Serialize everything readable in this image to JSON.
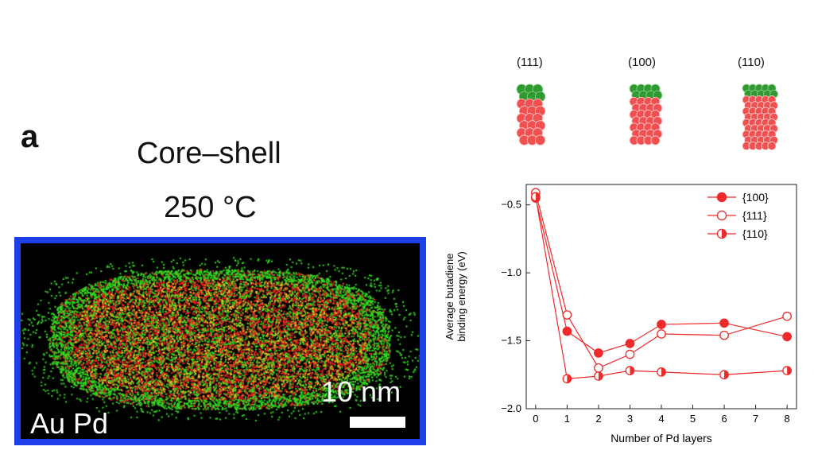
{
  "panel": {
    "letter": "a",
    "title_line1": "Core–shell",
    "title_line2": "250 °C"
  },
  "micrograph": {
    "scale_label": "10 nm",
    "element_label": "Au Pd",
    "frame_color": "#1d3ee8",
    "pd_color": "#33dd22",
    "au_color": "#ee2222"
  },
  "facets": [
    {
      "label": "(111)"
    },
    {
      "label": "(100)"
    },
    {
      "label": "(110)"
    }
  ],
  "chart_data": {
    "type": "line",
    "xlabel": "Number of Pd layers",
    "ylabel": "Average butadiene\nbinding energy (eV)",
    "xlim": [
      -0.3,
      8.3
    ],
    "ylim": [
      -2.0,
      -0.35
    ],
    "xticks": [
      0,
      1,
      2,
      3,
      4,
      5,
      6,
      7,
      8
    ],
    "yticks": [
      -2.0,
      -1.5,
      -1.0,
      -0.5
    ],
    "ytick_labels": [
      "−2.0",
      "−1.5",
      "−1.0",
      "−0.5"
    ],
    "legend_position": "top-right",
    "color": "#ee2a2a",
    "series": [
      {
        "name": "{100}",
        "marker": "filled",
        "x": [
          0,
          1,
          2,
          3,
          4,
          6,
          8
        ],
        "y": [
          -0.45,
          -1.43,
          -1.59,
          -1.52,
          -1.38,
          -1.37,
          -1.47
        ]
      },
      {
        "name": "{111}",
        "marker": "open",
        "x": [
          0,
          1,
          2,
          3,
          4,
          6,
          8
        ],
        "y": [
          -0.41,
          -1.31,
          -1.7,
          -1.6,
          -1.45,
          -1.46,
          -1.32
        ]
      },
      {
        "name": "{110}",
        "marker": "half",
        "x": [
          0,
          1,
          2,
          3,
          4,
          6,
          8
        ],
        "y": [
          -0.44,
          -1.78,
          -1.76,
          -1.72,
          -1.73,
          -1.75,
          -1.72
        ]
      }
    ]
  }
}
